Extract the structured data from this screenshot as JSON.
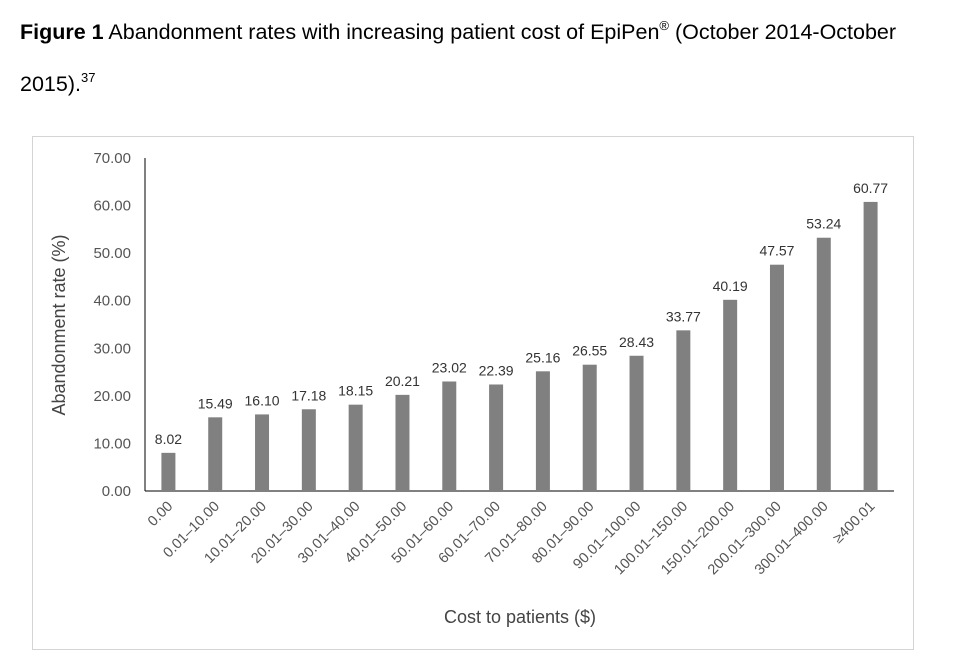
{
  "caption": {
    "label": "Figure 1",
    "text": " Abandonment rates with increasing patient cost of EpiPen",
    "mark": "®",
    "text2": " (October 2014-October 2015).",
    "ref": "37"
  },
  "chart_data": {
    "type": "bar",
    "categories": [
      "0.00",
      "0.01–10.00",
      "10.01–20.00",
      "20.01–30.00",
      "30.01–40.00",
      "40.01–50.00",
      "50.01–60.00",
      "60.01–70.00",
      "70.01–80.00",
      "80.01–90.00",
      "90.01–100.00",
      "100.01–150.00",
      "150.01–200.00",
      "200.01–300.00",
      "300.01–400.00",
      "≥400.01"
    ],
    "values": [
      8.02,
      15.49,
      16.1,
      17.18,
      18.15,
      20.21,
      23.02,
      22.39,
      25.16,
      26.55,
      28.43,
      33.77,
      40.19,
      47.57,
      53.24,
      60.77
    ],
    "data_labels": [
      "8.02",
      "15.49",
      "16.10",
      "17.18",
      "18.15",
      "20.21",
      "23.02",
      "22.39",
      "25.16",
      "26.55",
      "28.43",
      "33.77",
      "40.19",
      "47.57",
      "53.24",
      "60.77"
    ],
    "xlabel": "Cost to patients ($)",
    "ylabel": "Abandonment rate (%)",
    "ylim": [
      0,
      70
    ],
    "yticks": [
      "0.00",
      "10.00",
      "20.00",
      "30.00",
      "40.00",
      "50.00",
      "60.00",
      "70.00"
    ],
    "bar_color": "#808080",
    "grid": false
  }
}
